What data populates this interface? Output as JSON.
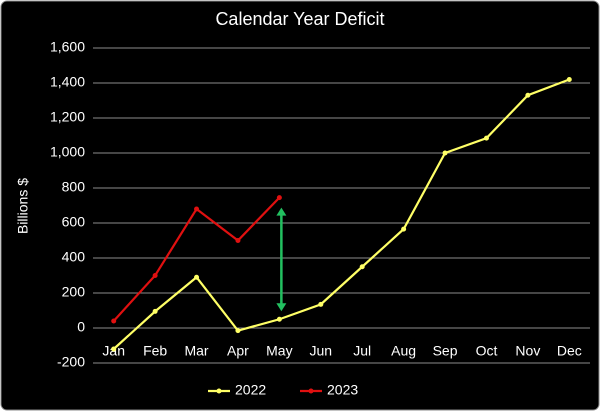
{
  "chart_data": {
    "type": "line",
    "title": "Calendar Year Deficit",
    "y_label": "Billions $",
    "categories": [
      "Jan",
      "Feb",
      "Mar",
      "Apr",
      "May",
      "Jun",
      "Jul",
      "Aug",
      "Sep",
      "Oct",
      "Nov",
      "Dec"
    ],
    "series": [
      {
        "name": "2022",
        "color": "#ffff66",
        "values": [
          -120,
          95,
          290,
          -15,
          50,
          135,
          350,
          565,
          1000,
          1085,
          1330,
          1420
        ]
      },
      {
        "name": "2023",
        "color": "#e01010",
        "values": [
          40,
          300,
          680,
          500,
          745,
          null,
          null,
          null,
          null,
          null,
          null,
          null
        ]
      }
    ],
    "ylim": [
      -200,
      1600
    ],
    "yticks": [
      {
        "value": -200,
        "label": "-200"
      },
      0,
      200,
      400,
      600,
      800,
      {
        "value": 1000,
        "label": "1,000"
      },
      {
        "value": 1200,
        "label": "1,200"
      },
      {
        "value": 1400,
        "label": "1,400"
      },
      {
        "value": 1600,
        "label": "1,600"
      }
    ],
    "grid": true,
    "legend": "bottom",
    "annotation_color": "#22c060"
  }
}
